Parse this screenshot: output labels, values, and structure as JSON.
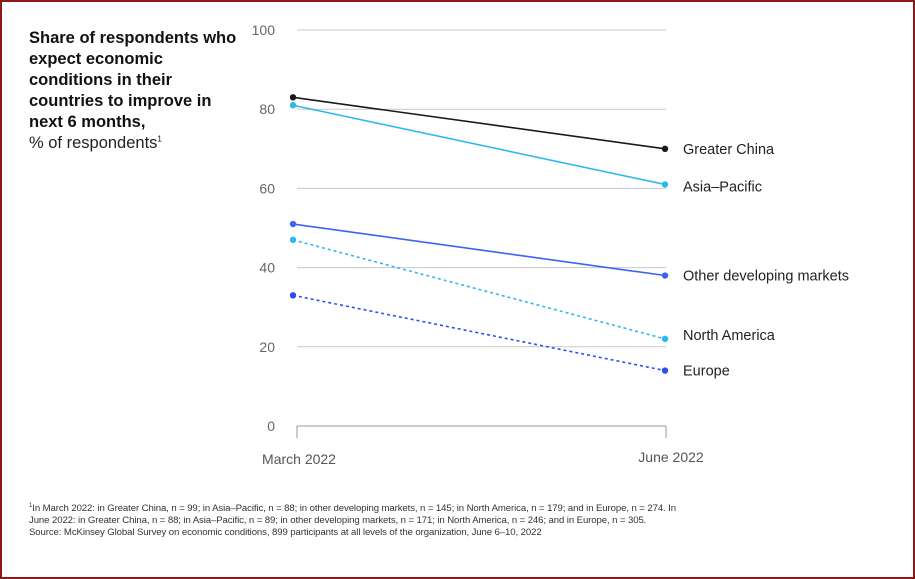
{
  "title": {
    "bold": "Share of respondents who expect economic conditions in their countries to improve in next 6 months,",
    "sub": "% of respondents",
    "sub_marker": "1"
  },
  "chart_data": {
    "type": "line",
    "title": "Share of respondents who expect economic conditions in their countries to improve in next 6 months,",
    "ylabel": "% of respondents",
    "categories": [
      "March 2022",
      "June 2022"
    ],
    "ylim": [
      0,
      100
    ],
    "yticks": [
      0,
      20,
      40,
      60,
      80,
      100
    ],
    "grid": true,
    "legend": "end-of-line labels",
    "series": [
      {
        "name": "Greater China",
        "values": [
          83,
          70
        ],
        "color": "#1a1a1a",
        "dashed": false
      },
      {
        "name": "Asia–Pacific",
        "values": [
          81,
          61
        ],
        "color": "#2fb8ef",
        "dashed": false
      },
      {
        "name": "Other developing markets",
        "values": [
          51,
          38
        ],
        "color": "#3f63f0",
        "dashed": false
      },
      {
        "name": "North America",
        "values": [
          47,
          22
        ],
        "color": "#2fb8ef",
        "dashed": true
      },
      {
        "name": "Europe",
        "values": [
          33,
          14
        ],
        "color": "#2e4ff0",
        "dashed": true
      }
    ]
  },
  "footnotes": {
    "marker": "1",
    "line1": "In March 2022: in Greater China, n = 99; in Asia–Pacific, n = 88; in other developing markets, n = 145; in North America, n = 179; and in Europe, n = 274. In",
    "line2": "June 2022: in Greater China, n = 88; in Asia–Pacific, n = 89; in other developing markets, n = 171; in North America, n = 246; and in Europe, n = 305.",
    "line3": "Source: McKinsey Global Survey on economic conditions, 899 participants at all levels of the organization, June 6–10, 2022"
  }
}
